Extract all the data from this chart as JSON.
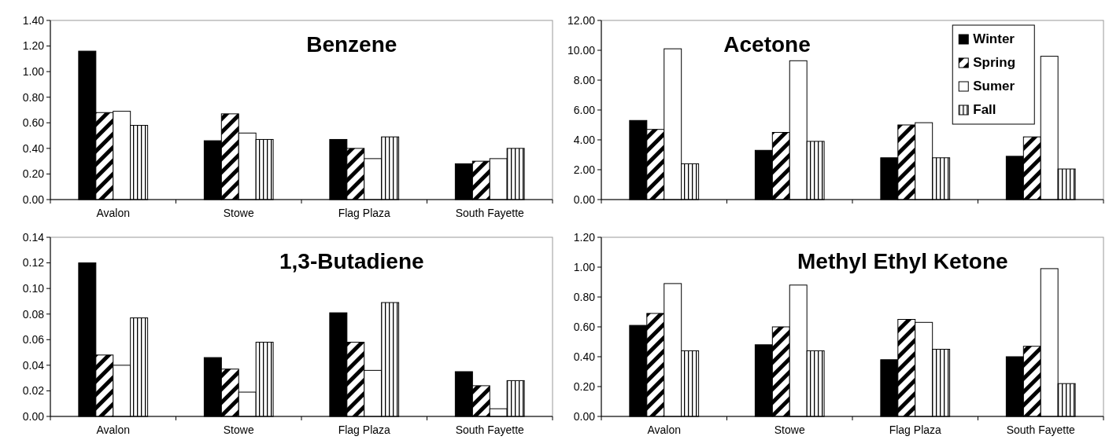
{
  "chart_data": [
    {
      "type": "bar",
      "title": "Benzene",
      "categories": [
        "Avalon",
        "Stowe",
        "Flag Plaza",
        "South Fayette"
      ],
      "series": [
        {
          "color": "#000000",
          "values": [
            1.16,
            0.46,
            0.47,
            0.28
          ]
        },
        {
          "color": "#000000",
          "values": [
            0.68,
            0.67,
            0.4,
            0.3
          ]
        },
        {
          "color": "#ffffff",
          "values": [
            0.69,
            0.52,
            0.32,
            0.32
          ]
        },
        {
          "color": "#000000",
          "values": [
            0.58,
            0.47,
            0.49,
            0.4
          ]
        }
      ],
      "ylim": [
        0,
        1.4
      ],
      "yticks": [
        {
          "value": 0,
          "label": "0.00"
        },
        {
          "value": 0.2,
          "label": "0.20"
        },
        {
          "value": 0.4,
          "label": "0.40"
        },
        {
          "value": 0.6,
          "label": "0.60"
        },
        {
          "value": 0.8,
          "label": "0.80"
        },
        {
          "value": 1,
          "label": "1.00"
        },
        {
          "value": 1.2,
          "label": "1.20"
        },
        {
          "value": 1.4,
          "label": "1.40"
        }
      ],
      "grid": false,
      "legend": false
    },
    {
      "type": "bar",
      "title": "Acetone",
      "categories": [
        null,
        null,
        null,
        null
      ],
      "series": [
        {
          "name": "Winter",
          "color": "#000000",
          "values": [
            5.3,
            3.3,
            2.8,
            2.9
          ]
        },
        {
          "name": "Spring",
          "color": "#000000",
          "values": [
            4.7,
            4.5,
            5.0,
            4.2
          ]
        },
        {
          "name": "Sumer",
          "color": "#ffffff",
          "values": [
            10.1,
            9.3,
            5.15,
            9.6
          ]
        },
        {
          "name": "Fall",
          "color": "#000000",
          "values": [
            2.4,
            3.9,
            2.8,
            2.05
          ]
        }
      ],
      "ylim": [
        0,
        12
      ],
      "yticks": [
        {
          "value": 0,
          "label": "0.00"
        },
        {
          "value": 2,
          "label": "2.00"
        },
        {
          "value": 4,
          "label": "4.00"
        },
        {
          "value": 6,
          "label": "6.00"
        },
        {
          "value": 8,
          "label": "8.00"
        },
        {
          "value": 10,
          "label": "10.00"
        },
        {
          "value": 12,
          "label": "12.00"
        }
      ],
      "grid": false,
      "legend": "top right"
    },
    {
      "type": "bar",
      "title": "1,3-Butadiene",
      "categories": [
        "Avalon",
        "Stowe",
        "Flag Plaza",
        "South Fayette"
      ],
      "series": [
        {
          "color": "#000000",
          "values": [
            0.12,
            0.046,
            0.081,
            0.035
          ]
        },
        {
          "color": "#000000",
          "values": [
            0.048,
            0.037,
            0.058,
            0.024
          ]
        },
        {
          "color": "#ffffff",
          "values": [
            0.04,
            0.019,
            0.036,
            0.006
          ]
        },
        {
          "color": "#000000",
          "values": [
            0.077,
            0.058,
            0.089,
            0.028
          ]
        }
      ],
      "ylim": [
        0,
        0.14
      ],
      "yticks": [
        {
          "value": 0,
          "label": "0.00"
        },
        {
          "value": 0.02,
          "label": "0.02"
        },
        {
          "value": 0.04,
          "label": "0.04"
        },
        {
          "value": 0.06,
          "label": "0.06"
        },
        {
          "value": 0.08,
          "label": "0.08"
        },
        {
          "value": 0.1,
          "label": "0.10"
        },
        {
          "value": 0.12,
          "label": "0.12"
        },
        {
          "value": 0.14,
          "label": "0.14"
        }
      ],
      "grid": false,
      "legend": false
    },
    {
      "type": "bar",
      "title": "Methyl Ethyl Ketone",
      "categories": [
        "Avalon",
        "Stowe",
        "Flag Plaza",
        "South Fayette"
      ],
      "series": [
        {
          "color": "#000000",
          "values": [
            0.61,
            0.48,
            0.38,
            0.4
          ]
        },
        {
          "color": "#000000",
          "values": [
            0.69,
            0.6,
            0.65,
            0.47
          ]
        },
        {
          "color": "#ffffff",
          "values": [
            0.89,
            0.88,
            0.63,
            0.99
          ]
        },
        {
          "color": "#000000",
          "values": [
            0.44,
            0.44,
            0.45,
            0.22
          ]
        }
      ],
      "ylim": [
        0,
        1.2
      ],
      "yticks": [
        {
          "value": 0,
          "label": "0.00"
        },
        {
          "value": 0.2,
          "label": "0.20"
        },
        {
          "value": 0.4,
          "label": "0.40"
        },
        {
          "value": 0.6,
          "label": "0.60"
        },
        {
          "value": 0.8,
          "label": "0.80"
        },
        {
          "value": 1,
          "label": "1.00"
        },
        {
          "value": 1.2,
          "label": "1.20"
        }
      ],
      "grid": false,
      "legend": false
    }
  ]
}
